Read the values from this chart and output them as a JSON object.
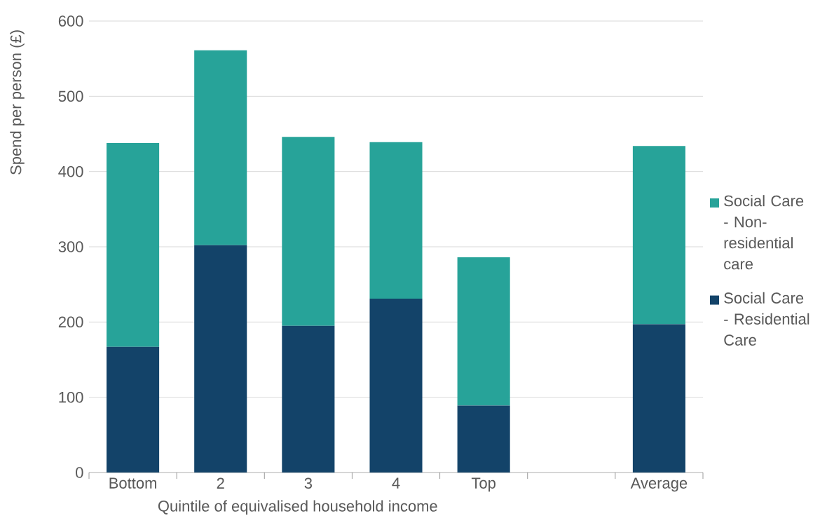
{
  "chart_data": {
    "type": "bar",
    "stacked": true,
    "xlabel": "Quintile of equivalised household income",
    "ylabel": "Spend per person (£)",
    "categories": [
      "Bottom",
      "2",
      "3",
      "4",
      "Top",
      null,
      "Average"
    ],
    "series": [
      {
        "name": "Social Care - Residential Care",
        "color": "#134369",
        "values": [
          167,
          302,
          195,
          231,
          89,
          null,
          197
        ]
      },
      {
        "name": "Social Care - Non-residential care",
        "color": "#27a399",
        "values": [
          271,
          259,
          251,
          208,
          197,
          null,
          237
        ]
      }
    ],
    "ylim": [
      0,
      600
    ],
    "yticks": [
      0,
      100,
      200,
      300,
      400,
      500,
      600
    ],
    "grid": "y",
    "legend": "right"
  }
}
